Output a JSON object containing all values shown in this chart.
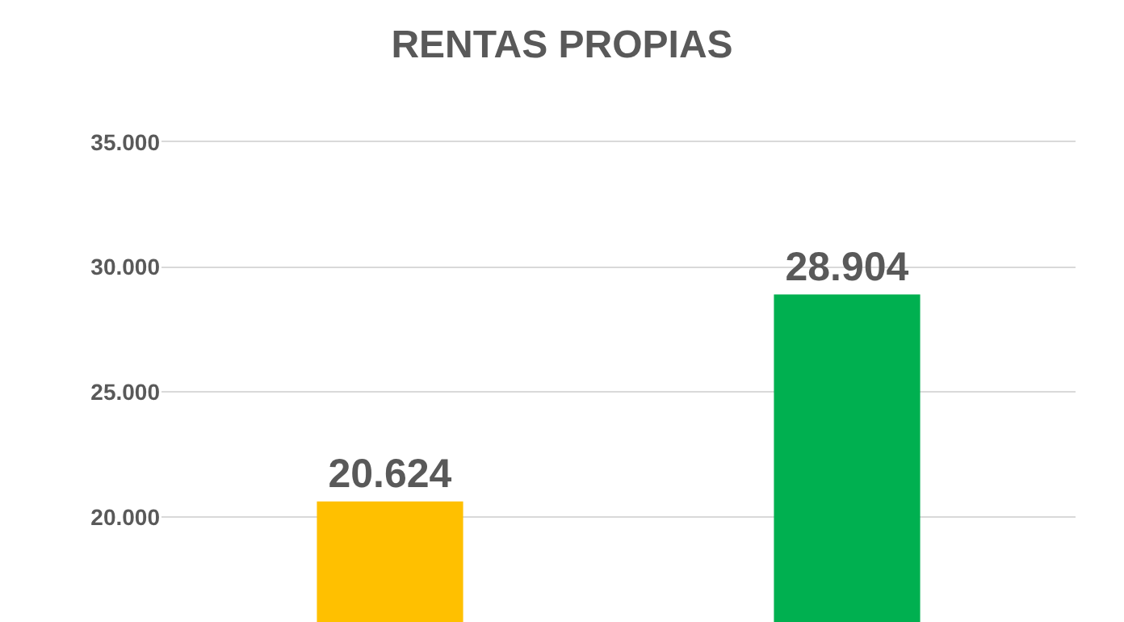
{
  "chart_data": {
    "type": "bar",
    "title": "RENTAS PROPIAS",
    "categories": [
      null,
      null
    ],
    "values": [
      20624,
      28904
    ],
    "colors": [
      "#ffc000",
      "#00b050"
    ],
    "value_labels": [
      "20.624",
      "28.904"
    ],
    "ylim": [
      15800,
      35000
    ],
    "yticks": [
      {
        "value": 20000,
        "label": "20.000"
      },
      {
        "value": 25000,
        "label": "25.000"
      },
      {
        "value": 30000,
        "label": "30.000"
      },
      {
        "value": 35000,
        "label": "35.000"
      }
    ],
    "grid": "y"
  }
}
